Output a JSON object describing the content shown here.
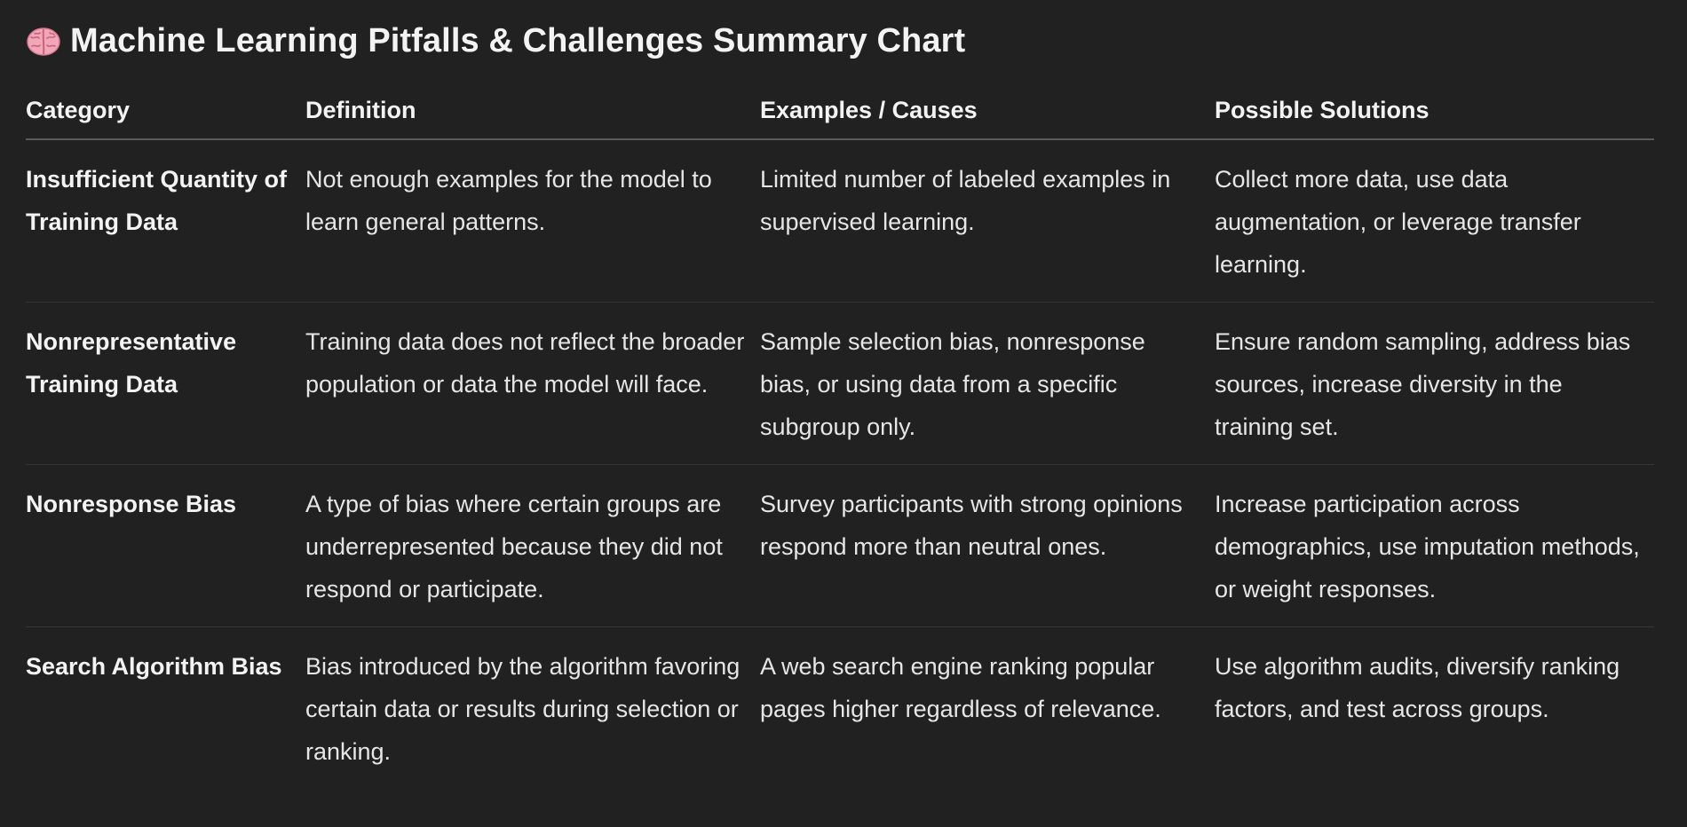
{
  "title": {
    "icon": "brain-emoji",
    "text": "Machine Learning Pitfalls & Challenges Summary Chart"
  },
  "table": {
    "headers": [
      "Category",
      "Definition",
      "Examples / Causes",
      "Possible Solutions"
    ],
    "rows": [
      {
        "category": "Insufficient Quantity of Training Data",
        "definition": "Not enough examples for the model to learn general patterns.",
        "examples": "Limited number of labeled examples in supervised learning.",
        "solutions": "Collect more data, use data augmentation, or leverage transfer learning."
      },
      {
        "category": "Nonrepresentative Training Data",
        "definition": "Training data does not reflect the broader population or data the model will face.",
        "examples": "Sample selection bias, nonresponse bias, or using data from a specific subgroup only.",
        "solutions": "Ensure random sampling, address bias sources, increase diversity in the training set."
      },
      {
        "category": "Nonresponse Bias",
        "definition": "A type of bias where certain groups are underrepresented because they did not respond or participate.",
        "examples": "Survey participants with strong opinions respond more than neutral ones.",
        "solutions": "Increase participation across demographics, use imputation methods, or weight responses."
      },
      {
        "category": "Search Algorithm Bias",
        "definition": "Bias introduced by the algorithm favoring certain data or results during selection or ranking.",
        "examples": "A web search engine ranking popular pages higher regardless of relevance.",
        "solutions": "Use algorithm audits, diversify ranking factors, and test across groups."
      }
    ]
  }
}
